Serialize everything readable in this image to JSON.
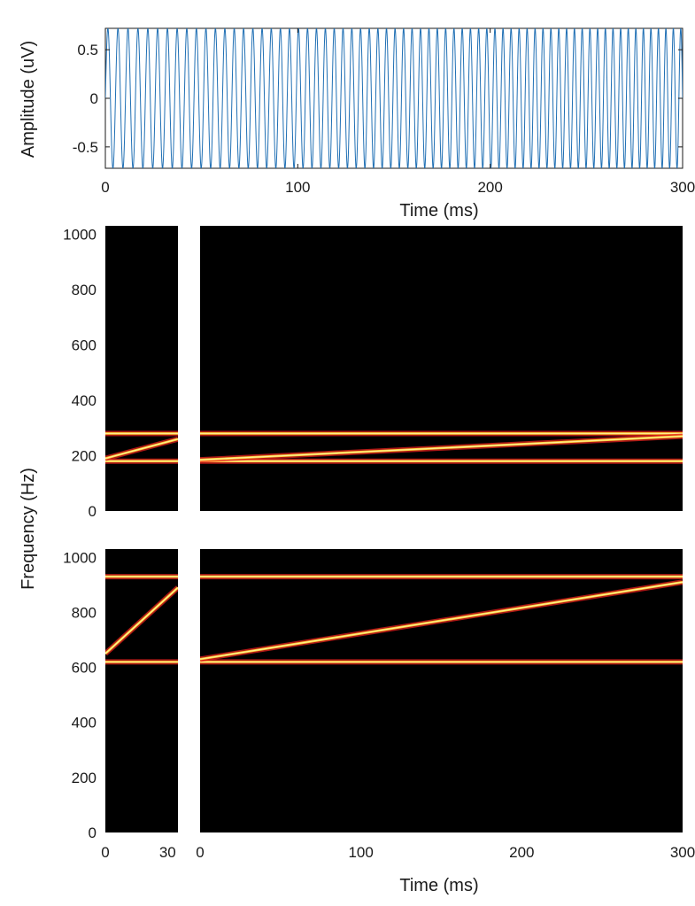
{
  "chart_data": [
    {
      "id": "waveform",
      "type": "line",
      "xlabel": "Time (ms)",
      "ylabel": "Amplitude (uV)",
      "xlim": [
        0,
        300
      ],
      "ylim": [
        -0.72,
        0.72
      ],
      "xticks": [
        0,
        100,
        200,
        300
      ],
      "yticks": [
        -0.5,
        0,
        0.5
      ],
      "ytick_labels": [
        "-0.5",
        "0",
        "0.5"
      ],
      "color": "#1f6fb4",
      "series": [
        {
          "amplitude": 0.72,
          "start_frequency_hz": 190,
          "end_frequency_hz": 260
        }
      ]
    },
    {
      "id": "spectrogram-low",
      "type": "heatmap",
      "panels": [
        {
          "xlim": [
            0,
            35
          ],
          "xticks": []
        },
        {
          "xlim": [
            0,
            300
          ],
          "xticks": []
        }
      ],
      "ylim": [
        0,
        1030
      ],
      "yticks": [
        0,
        200,
        400,
        600,
        800,
        1000
      ],
      "background": "#000000",
      "series": [
        {
          "kind": "constant",
          "panel": 0,
          "freq_start": 280,
          "freq_end": 280
        },
        {
          "kind": "constant",
          "panel": 0,
          "freq_start": 180,
          "freq_end": 180
        },
        {
          "kind": "sweep",
          "panel": 0,
          "freq_start": 190,
          "freq_end": 260
        },
        {
          "kind": "constant",
          "panel": 1,
          "freq_start": 280,
          "freq_end": 280
        },
        {
          "kind": "constant",
          "panel": 1,
          "freq_start": 180,
          "freq_end": 180
        },
        {
          "kind": "sweep",
          "panel": 1,
          "freq_start": 185,
          "freq_end": 270
        }
      ]
    },
    {
      "id": "spectrogram-high",
      "type": "heatmap",
      "panels": [
        {
          "xlim": [
            0,
            35
          ],
          "xticks": [
            0,
            30
          ]
        },
        {
          "xlim": [
            0,
            300
          ],
          "xticks": [
            0,
            100,
            200,
            300
          ]
        }
      ],
      "ylim": [
        0,
        1030
      ],
      "yticks": [
        0,
        200,
        400,
        600,
        800,
        1000
      ],
      "xlabel": "Time (ms)",
      "background": "#000000",
      "series": [
        {
          "kind": "constant",
          "panel": 0,
          "freq_start": 930,
          "freq_end": 930
        },
        {
          "kind": "constant",
          "panel": 0,
          "freq_start": 620,
          "freq_end": 620
        },
        {
          "kind": "sweep",
          "panel": 0,
          "freq_start": 650,
          "freq_end": 890
        },
        {
          "kind": "constant",
          "panel": 1,
          "freq_start": 930,
          "freq_end": 930
        },
        {
          "kind": "constant",
          "panel": 1,
          "freq_start": 620,
          "freq_end": 620
        },
        {
          "kind": "sweep",
          "panel": 1,
          "freq_start": 630,
          "freq_end": 910
        }
      ]
    }
  ],
  "shared_ylabel": "Frequency (Hz)",
  "colors": {
    "line_glow": "#e8211e",
    "line_core": "#ffd23a",
    "line_hot": "#fff6b0"
  }
}
